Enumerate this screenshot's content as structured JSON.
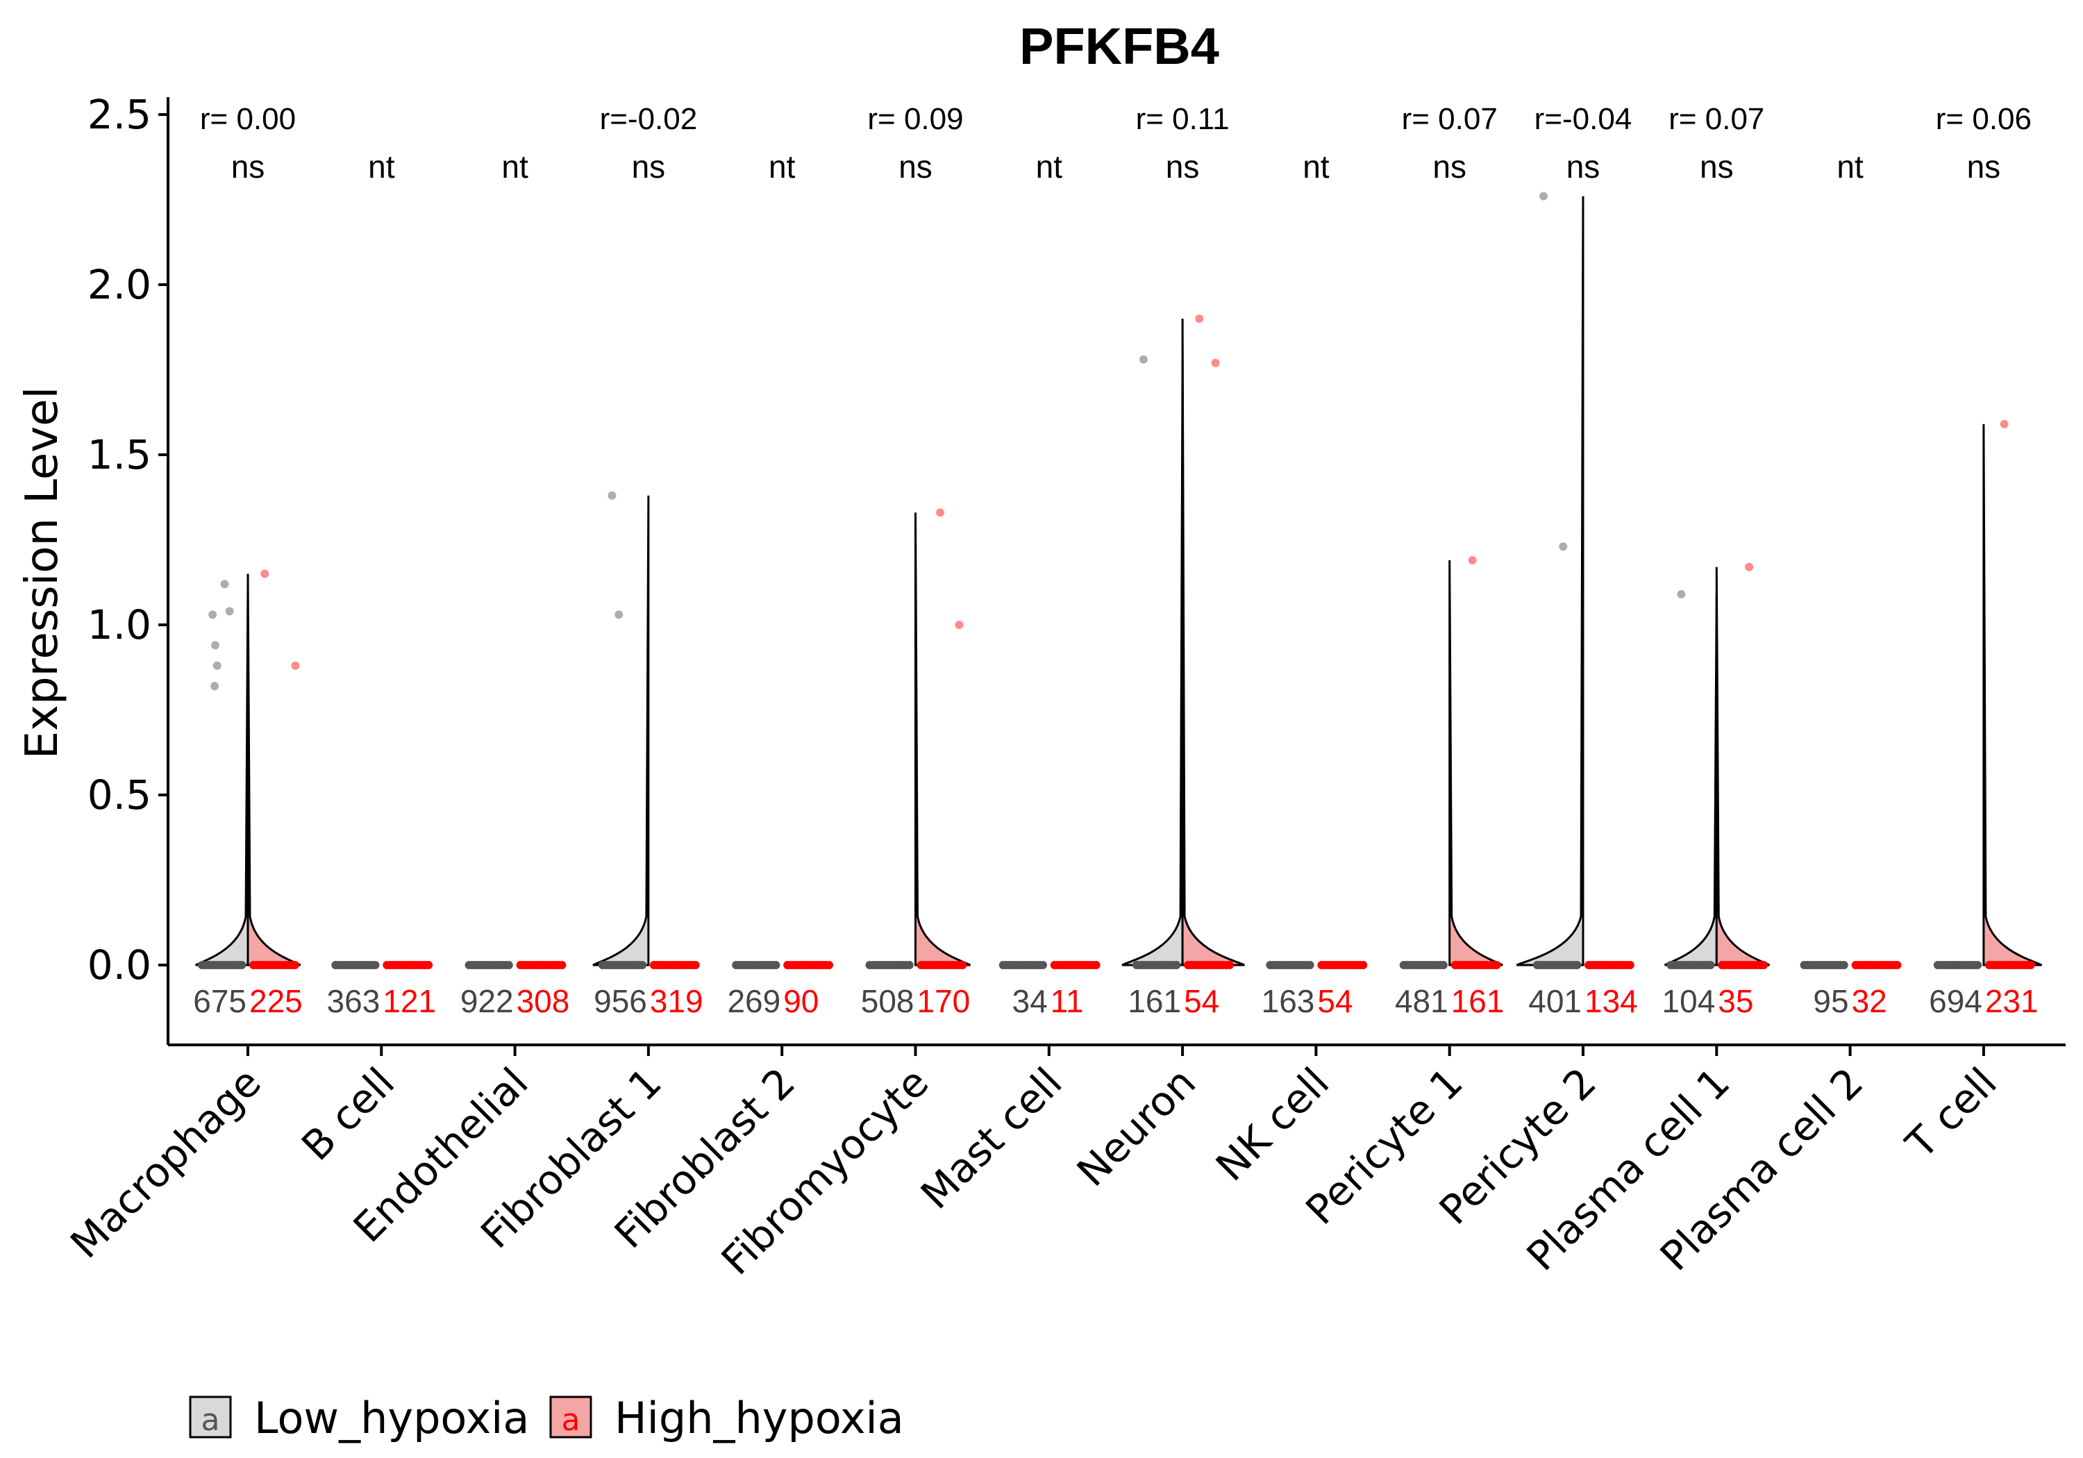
{
  "chart_data": {
    "type": "violin",
    "title": "PFKFB4",
    "ylabel": "Expression Level",
    "xlabel": "",
    "ylim": [
      -0.22,
      2.55
    ],
    "yticks": [
      "0.0",
      "0.5",
      "1.0",
      "1.5",
      "2.0",
      "2.5"
    ],
    "grid": false,
    "legend_position": "bottom-left",
    "colors": {
      "Low_hypoxia": "#d9d9d9",
      "High_hypoxia": "#f4a6a6",
      "low_point": "#555555",
      "high_point": "#ff0000",
      "low_count": "#444444",
      "high_count": "#ff0000"
    },
    "categories": [
      "Macrophage",
      "B cell",
      "Endothelial",
      "Fibroblast 1",
      "Fibroblast 2",
      "Fibromyocyte",
      "Mast cell",
      "Neuron",
      "NK cell",
      "Pericyte 1",
      "Pericyte 2",
      "Plasma cell 1",
      "Plasma cell 2",
      "T cell"
    ],
    "r_values": [
      "r= 0.00",
      "",
      "",
      "r=-0.02",
      "",
      "r= 0.09",
      "",
      "r= 0.11",
      "",
      "r= 0.07",
      "r=-0.04",
      "r= 0.07",
      "",
      "r= 0.06"
    ],
    "significance": [
      "ns",
      "nt",
      "nt",
      "ns",
      "nt",
      "ns",
      "nt",
      "ns",
      "nt",
      "ns",
      "ns",
      "ns",
      "nt",
      "ns"
    ],
    "series": [
      {
        "name": "Low_hypoxia",
        "counts": [
          "675",
          "363",
          "922",
          "956",
          "269",
          "508",
          "34",
          "161",
          "163",
          "481",
          "401",
          "104",
          "95",
          "694"
        ],
        "max": [
          1.12,
          0,
          0,
          1.38,
          0,
          0,
          0,
          1.78,
          0,
          0,
          2.26,
          1.09,
          0,
          0
        ],
        "outliers": [
          [
            0.94,
            1.03,
            1.04,
            1.12,
            0.88,
            0.82
          ],
          [],
          [],
          [
            1.38,
            1.03
          ],
          [],
          [],
          [],
          [
            1.78
          ],
          [],
          [],
          [
            2.26,
            1.23
          ],
          [
            1.09
          ],
          [],
          []
        ]
      },
      {
        "name": "High_hypoxia",
        "counts": [
          "225",
          "121",
          "308",
          "319",
          "90",
          "170",
          "11",
          "54",
          "54",
          "161",
          "134",
          "35",
          "32",
          "231"
        ],
        "max": [
          1.15,
          0,
          0,
          0,
          0,
          1.33,
          0,
          1.9,
          0,
          1.19,
          0,
          1.17,
          0,
          1.59
        ],
        "outliers": [
          [
            1.15,
            0.88
          ],
          [],
          [],
          [],
          [],
          [
            1.33,
            1.0
          ],
          [],
          [
            1.9,
            1.77
          ],
          [],
          [
            1.19
          ],
          [],
          [
            1.17
          ],
          [],
          [
            1.59
          ]
        ]
      }
    ]
  },
  "legend": {
    "items": [
      {
        "label": "Low_hypoxia",
        "glyph": "a"
      },
      {
        "label": "High_hypoxia",
        "glyph": "a"
      }
    ]
  }
}
